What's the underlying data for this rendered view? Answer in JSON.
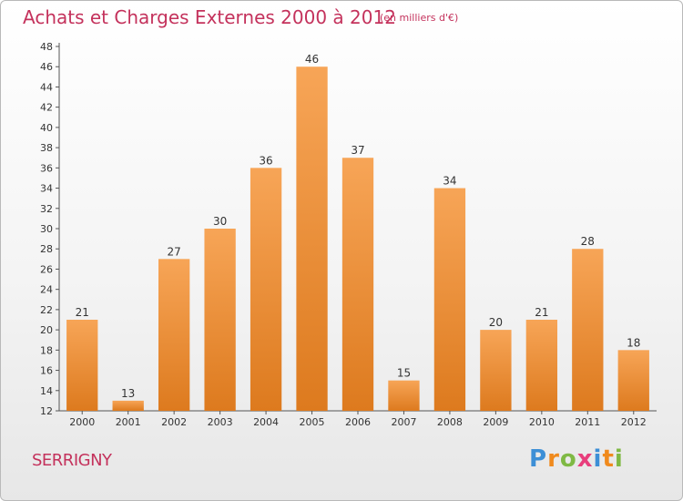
{
  "header": {
    "title": "Achats et Charges Externes 2000 à 2012",
    "subtitle": "(en milliers d'€)"
  },
  "footer": {
    "place": "SERRIGNY",
    "logo": "Proxiti"
  },
  "colors": {
    "title": "#c4325c",
    "bar_light": "#f7a557",
    "bar_dark": "#dd7a1e",
    "logo_letters": [
      "#3d8fd6",
      "#f08a1d",
      "#7fb944",
      "#e83e7c",
      "#3d8fd6",
      "#f08a1d",
      "#7fb944"
    ]
  },
  "chart_data": {
    "type": "bar",
    "title": "Achats et Charges Externes 2000 à 2012",
    "subtitle": "(en milliers d'€)",
    "xlabel": "",
    "ylabel": "",
    "categories": [
      "2000",
      "2001",
      "2002",
      "2003",
      "2004",
      "2005",
      "2006",
      "2007",
      "2008",
      "2009",
      "2010",
      "2011",
      "2012"
    ],
    "values": [
      21,
      13,
      27,
      30,
      36,
      46,
      37,
      15,
      34,
      20,
      21,
      28,
      18
    ],
    "ylim": [
      12,
      48
    ],
    "yticks": [
      12,
      14,
      16,
      18,
      20,
      22,
      24,
      26,
      28,
      30,
      32,
      34,
      36,
      38,
      40,
      42,
      44,
      46,
      48
    ],
    "grid": false,
    "legend": "none"
  }
}
